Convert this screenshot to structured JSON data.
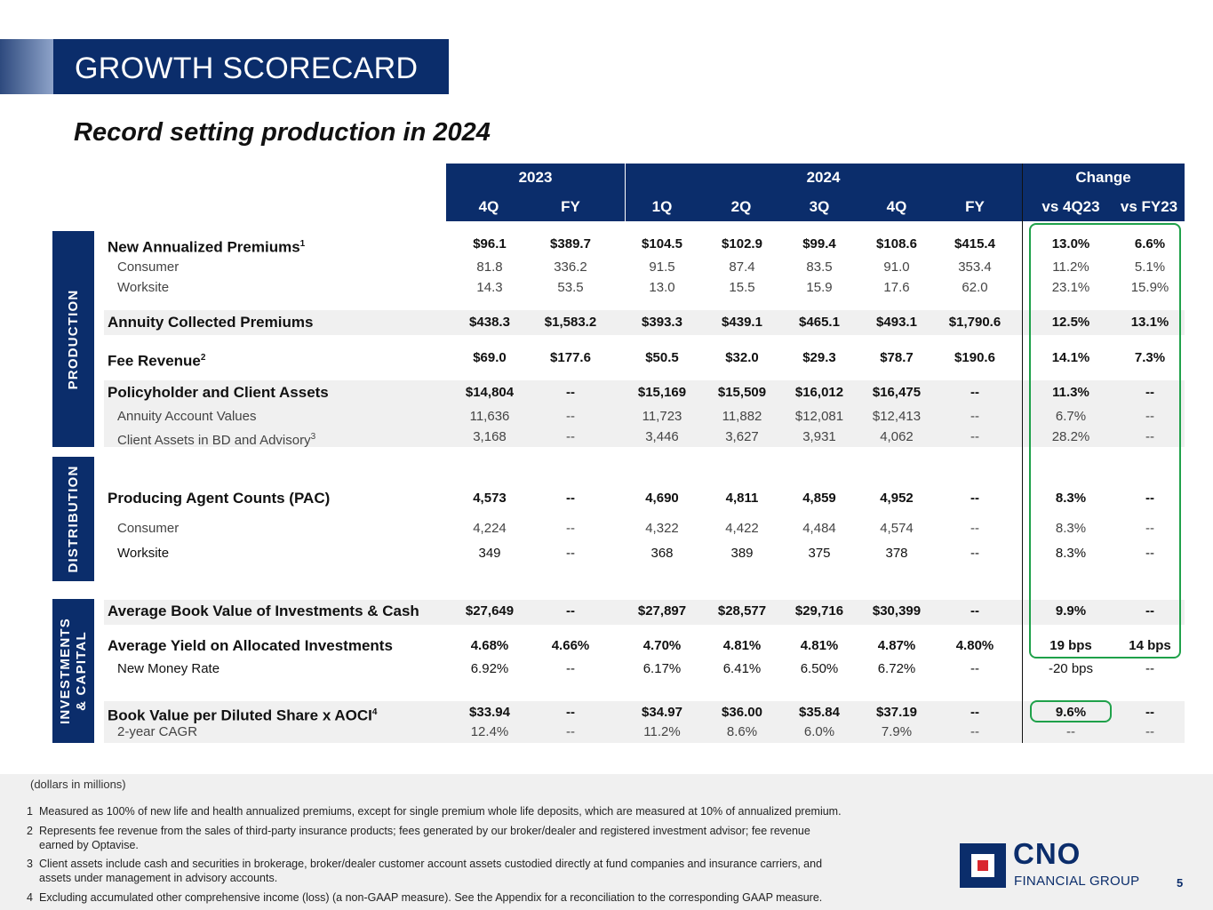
{
  "title": "GROWTH SCORECARD",
  "subtitle": "Record setting production in 2024",
  "header": {
    "groups": [
      "2023",
      "2024",
      "Change"
    ],
    "columns": [
      "4Q",
      "FY",
      "1Q",
      "2Q",
      "3Q",
      "4Q",
      "FY",
      "vs 4Q23",
      "vs FY23"
    ]
  },
  "sections": [
    "PRODUCTION",
    "DISTRIBUTION",
    "INVESTMENTS\n& CAPITAL"
  ],
  "rows": [
    {
      "label": "New Annualized Premiums",
      "sup": "1",
      "values": [
        "$96.1",
        "$389.7",
        "$104.5",
        "$102.9",
        "$99.4",
        "$108.6",
        "$415.4",
        "13.0%",
        "6.6%"
      ]
    },
    {
      "label": "Consumer",
      "sup": "",
      "values": [
        "81.8",
        "336.2",
        "91.5",
        "87.4",
        "83.5",
        "91.0",
        "353.4",
        "11.2%",
        "5.1%"
      ]
    },
    {
      "label": "Worksite",
      "sup": "",
      "values": [
        "14.3",
        "53.5",
        "13.0",
        "15.5",
        "15.9",
        "17.6",
        "62.0",
        "23.1%",
        "15.9%"
      ]
    },
    {
      "label": "Annuity Collected Premiums",
      "sup": "",
      "values": [
        "$438.3",
        "$1,583.2",
        "$393.3",
        "$439.1",
        "$465.1",
        "$493.1",
        "$1,790.6",
        "12.5%",
        "13.1%"
      ]
    },
    {
      "label": "Fee Revenue",
      "sup": "2",
      "values": [
        "$69.0",
        "$177.6",
        "$50.5",
        "$32.0",
        "$29.3",
        "$78.7",
        "$190.6",
        "14.1%",
        "7.3%"
      ]
    },
    {
      "label": "Policyholder and Client Assets",
      "sup": "",
      "values": [
        "$14,804",
        "--",
        "$15,169",
        "$15,509",
        "$16,012",
        "$16,475",
        "--",
        "11.3%",
        "--"
      ]
    },
    {
      "label": "Annuity Account Values",
      "sup": "",
      "values": [
        "11,636",
        "--",
        "11,723",
        "11,882",
        "$12,081",
        "$12,413",
        "--",
        "6.7%",
        "--"
      ]
    },
    {
      "label": "Client Assets in BD and Advisory",
      "sup": "3",
      "values": [
        "3,168",
        "--",
        "3,446",
        "3,627",
        "3,931",
        "4,062",
        "--",
        "28.2%",
        "--"
      ]
    },
    {
      "label": "Producing Agent Counts (PAC)",
      "sup": "",
      "values": [
        "4,573",
        "--",
        "4,690",
        "4,811",
        "4,859",
        "4,952",
        "--",
        "8.3%",
        "--"
      ]
    },
    {
      "label": "Consumer",
      "sup": "",
      "values": [
        "4,224",
        "--",
        "4,322",
        "4,422",
        "4,484",
        "4,574",
        "--",
        "8.3%",
        "--"
      ]
    },
    {
      "label": "Worksite",
      "sup": "",
      "values": [
        "349",
        "--",
        "368",
        "389",
        "375",
        "378",
        "--",
        "8.3%",
        "--"
      ]
    },
    {
      "label": "Average Book Value of Investments & Cash",
      "sup": "",
      "values": [
        "$27,649",
        "--",
        "$27,897",
        "$28,577",
        "$29,716",
        "$30,399",
        "--",
        "9.9%",
        "--"
      ]
    },
    {
      "label": "Average Yield on Allocated Investments",
      "sup": "",
      "values": [
        "4.68%",
        "4.66%",
        "4.70%",
        "4.81%",
        "4.81%",
        "4.87%",
        "4.80%",
        "19 bps",
        "14 bps"
      ]
    },
    {
      "label": "New Money Rate",
      "sup": "",
      "values": [
        "6.92%",
        "--",
        "6.17%",
        "6.41%",
        "6.50%",
        "6.72%",
        "--",
        "-20 bps",
        "--"
      ]
    },
    {
      "label": "Book Value per Diluted Share x AOCI",
      "sup": "4",
      "values": [
        "$33.94",
        "--",
        "$34.97",
        "$36.00",
        "$35.84",
        "$37.19",
        "--",
        "9.6%",
        "--"
      ]
    },
    {
      "label": "2-year CAGR",
      "sup": "",
      "values": [
        "12.4%",
        "--",
        "11.2%",
        "8.6%",
        "6.0%",
        "7.9%",
        "--",
        "--",
        "--"
      ]
    }
  ],
  "units_note": "(dollars in millions)",
  "footnotes": [
    {
      "num": "1",
      "text": "Measured as 100% of new life and health annualized premiums, except for single premium whole life deposits, which are measured at 10% of annualized premium.",
      "cont": ""
    },
    {
      "num": "2",
      "text": "Represents fee revenue from the sales of third-party insurance products; fees generated by our broker/dealer and registered investment advisor; fee revenue",
      "cont": "earned by Optavise."
    },
    {
      "num": "3",
      "text": "Client assets include cash and securities in brokerage, broker/dealer customer account assets custodied directly at fund companies and insurance carriers, and",
      "cont": "assets under management in advisory accounts."
    },
    {
      "num": "4",
      "text": "Excluding accumulated other comprehensive income (loss) (a non-GAAP measure). See the Appendix for a reconciliation to the corresponding GAAP measure.",
      "cont": ""
    }
  ],
  "logo": {
    "name": "CNO",
    "tagline": "FINANCIAL GROUP"
  },
  "page_number": "5",
  "colors": {
    "navy": "#0b2d6b",
    "highlight": "#1fa14a",
    "shade": "#f0f0f0",
    "logo_red": "#d9262e"
  }
}
